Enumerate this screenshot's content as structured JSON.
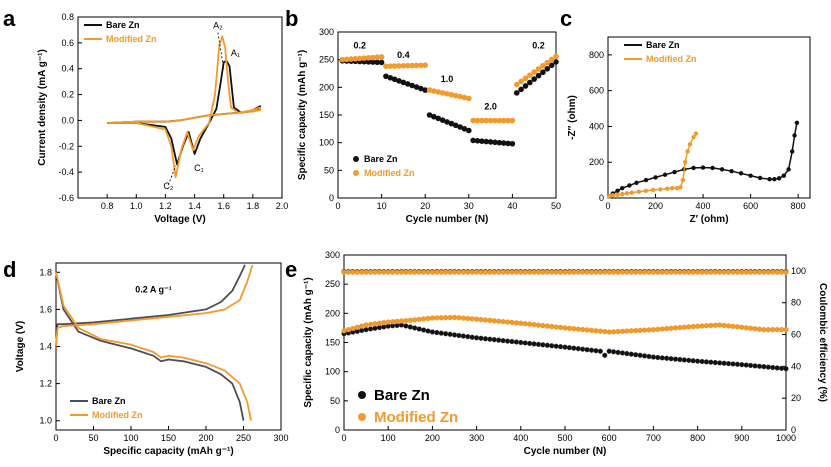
{
  "colors": {
    "black": "#111111",
    "orange": "#f39a2b",
    "gray": "#4d4d57"
  },
  "chart_data": [
    {
      "panel": "a",
      "type": "line",
      "xlabel": "Voltage (V)",
      "ylabel": "Current density (mA g⁻¹)",
      "xlim": [
        0.6,
        2.0
      ],
      "ylim": [
        -0.6,
        0.8
      ],
      "xticks": [
        "0.8",
        "1.0",
        "1.2",
        "1.4",
        "1.6",
        "1.8",
        "2.0"
      ],
      "yticks": [
        "-0.6",
        "-0.4",
        "-0.2",
        "0.0",
        "0.2",
        "0.4",
        "0.6",
        "0.8"
      ],
      "legend_position": "top-left",
      "annotations": [
        "A₂",
        "A₁",
        "C₂",
        "C₁"
      ],
      "series": [
        {
          "name": "Bare Zn",
          "color": "#111111",
          "x": [
            0.8,
            1.0,
            1.2,
            1.24,
            1.28,
            1.32,
            1.36,
            1.4,
            1.44,
            1.5,
            1.55,
            1.58,
            1.6,
            1.62,
            1.64,
            1.67,
            1.72,
            1.8,
            1.85,
            1.85,
            1.8,
            1.7,
            1.6,
            1.5,
            1.4,
            1.3,
            1.2,
            1.0,
            0.8
          ],
          "y": [
            -0.02,
            -0.02,
            -0.05,
            -0.14,
            -0.34,
            -0.2,
            -0.09,
            -0.26,
            -0.14,
            -0.02,
            0.09,
            0.3,
            0.45,
            0.46,
            0.42,
            0.1,
            0.06,
            0.08,
            0.11,
            0.09,
            0.07,
            0.06,
            0.05,
            0.04,
            0.02,
            0.0,
            -0.01,
            -0.01,
            -0.02
          ]
        },
        {
          "name": "Modified Zn",
          "color": "#f39a2b",
          "x": [
            0.8,
            1.0,
            1.2,
            1.24,
            1.27,
            1.31,
            1.35,
            1.39,
            1.43,
            1.5,
            1.54,
            1.57,
            1.59,
            1.61,
            1.63,
            1.65,
            1.7,
            1.8,
            1.85,
            1.85,
            1.8,
            1.7,
            1.6,
            1.5,
            1.4,
            1.3,
            1.2,
            1.0,
            0.8
          ],
          "y": [
            -0.02,
            -0.02,
            -0.07,
            -0.2,
            -0.44,
            -0.22,
            -0.09,
            -0.23,
            -0.12,
            -0.02,
            0.2,
            0.58,
            0.65,
            0.56,
            0.3,
            0.1,
            0.06,
            0.08,
            0.1,
            0.08,
            0.07,
            0.06,
            0.05,
            0.04,
            0.02,
            0.0,
            -0.01,
            -0.01,
            -0.02
          ]
        }
      ]
    },
    {
      "panel": "b",
      "type": "scatter",
      "xlabel": "Cycle number (N)",
      "ylabel": "Specific capacity (mAh g⁻¹)",
      "xlim": [
        0,
        50
      ],
      "ylim": [
        0,
        300
      ],
      "xticks": [
        "0",
        "10",
        "20",
        "30",
        "40",
        "50"
      ],
      "yticks": [
        "0",
        "50",
        "100",
        "150",
        "200",
        "250",
        "300"
      ],
      "legend_position": "bottom-left",
      "rate_labels": [
        "0.2",
        "0.4",
        "1.0",
        "2.0",
        "0.2"
      ],
      "series": [
        {
          "name": "Bare Zn",
          "color": "#111111",
          "segments": [
            {
              "x0": 1,
              "x1": 10,
              "y0": 248,
              "y1": 245
            },
            {
              "x0": 11,
              "x1": 20,
              "y0": 220,
              "y1": 195
            },
            {
              "x0": 21,
              "x1": 30,
              "y0": 150,
              "y1": 122
            },
            {
              "x0": 31,
              "x1": 40,
              "y0": 104,
              "y1": 98
            },
            {
              "x0": 41,
              "x1": 50,
              "y0": 190,
              "y1": 246
            }
          ]
        },
        {
          "name": "Modified Zn",
          "color": "#f39a2b",
          "segments": [
            {
              "x0": 1,
              "x1": 10,
              "y0": 250,
              "y1": 255
            },
            {
              "x0": 11,
              "x1": 20,
              "y0": 238,
              "y1": 240
            },
            {
              "x0": 21,
              "x1": 30,
              "y0": 195,
              "y1": 180
            },
            {
              "x0": 31,
              "x1": 40,
              "y0": 140,
              "y1": 140
            },
            {
              "x0": 41,
              "x1": 50,
              "y0": 205,
              "y1": 256
            }
          ]
        }
      ]
    },
    {
      "panel": "c",
      "type": "line",
      "xlabel": "Z′ (ohm)",
      "ylabel": "-Z″ (ohm)",
      "xlim": [
        0,
        850
      ],
      "ylim": [
        0,
        900
      ],
      "xticks": [
        "0",
        "200",
        "400",
        "600",
        "800"
      ],
      "yticks": [
        "0",
        "200",
        "400",
        "600",
        "800"
      ],
      "legend_position": "top-left",
      "series": [
        {
          "name": "Bare Zn",
          "color": "#111111",
          "x": [
            5,
            20,
            40,
            60,
            90,
            120,
            160,
            200,
            240,
            280,
            320,
            360,
            400,
            440,
            480,
            520,
            560,
            600,
            640,
            680,
            700,
            720,
            740,
            760,
            775,
            785,
            795
          ],
          "y": [
            10,
            25,
            40,
            55,
            70,
            85,
            100,
            115,
            130,
            145,
            160,
            168,
            170,
            168,
            160,
            150,
            138,
            125,
            112,
            105,
            105,
            110,
            125,
            160,
            260,
            350,
            420
          ]
        },
        {
          "name": "Modified Zn",
          "color": "#f39a2b",
          "x": [
            5,
            20,
            40,
            60,
            80,
            100,
            130,
            160,
            190,
            220,
            250,
            270,
            290,
            305,
            315,
            325,
            335,
            345,
            360,
            370
          ],
          "y": [
            10,
            15,
            18,
            22,
            26,
            30,
            35,
            40,
            45,
            48,
            52,
            55,
            55,
            60,
            100,
            200,
            260,
            300,
            340,
            360
          ]
        }
      ]
    },
    {
      "panel": "d",
      "type": "line",
      "annotation": "0.2 A g⁻¹",
      "xlabel": "Specific capacity (mAh g⁻¹)",
      "ylabel": "Voltage (V)",
      "xlim": [
        0,
        300
      ],
      "ylim": [
        0.95,
        1.85
      ],
      "xticks": [
        "0",
        "50",
        "100",
        "150",
        "200",
        "250",
        "300"
      ],
      "yticks": [
        "1.0",
        "1.2",
        "1.4",
        "1.6",
        "1.8"
      ],
      "legend_position": "bottom-left",
      "series": [
        {
          "name": "Bare Zn",
          "color": "#4d4d57",
          "x": [
            0,
            10,
            30,
            60,
            100,
            130,
            140,
            150,
            170,
            200,
            220,
            235,
            245,
            250,
            0,
            2,
            10,
            50,
            100,
            150,
            200,
            220,
            235,
            245,
            252
          ],
          "y": [
            1.8,
            1.6,
            1.48,
            1.43,
            1.39,
            1.35,
            1.32,
            1.33,
            1.32,
            1.29,
            1.25,
            1.2,
            1.1,
            1.0,
            1.4,
            1.52,
            1.52,
            1.53,
            1.55,
            1.57,
            1.6,
            1.64,
            1.7,
            1.78,
            1.84
          ]
        },
        {
          "name": "Modified Zn",
          "color": "#f39a2b",
          "x": [
            0,
            10,
            30,
            60,
            100,
            130,
            140,
            150,
            170,
            200,
            225,
            245,
            255,
            260,
            0,
            2,
            10,
            50,
            100,
            150,
            200,
            225,
            245,
            255,
            262
          ],
          "y": [
            1.8,
            1.62,
            1.5,
            1.44,
            1.41,
            1.37,
            1.34,
            1.35,
            1.34,
            1.31,
            1.27,
            1.2,
            1.1,
            1.0,
            1.4,
            1.5,
            1.51,
            1.52,
            1.54,
            1.56,
            1.58,
            1.6,
            1.65,
            1.75,
            1.84
          ]
        }
      ]
    },
    {
      "panel": "e",
      "type": "scatter",
      "xlabel": "Cycle number (N)",
      "ylabel": "Specific capacity (mAh g⁻¹)",
      "y2label": "Coulombic efficiency (%)",
      "xlim": [
        0,
        1000
      ],
      "ylim": [
        0,
        300
      ],
      "y2lim": [
        0,
        110
      ],
      "xticks": [
        "0",
        "100",
        "200",
        "300",
        "400",
        "500",
        "600",
        "700",
        "800",
        "900",
        "1000"
      ],
      "yticks": [
        "0",
        "50",
        "100",
        "150",
        "200",
        "250",
        "300"
      ],
      "y2ticks": [
        "0",
        "20",
        "40",
        "60",
        "80",
        "100"
      ],
      "legend_position": "bottom-left",
      "series": [
        {
          "name": "Bare Zn",
          "color": "#111111",
          "x": [
            0,
            50,
            100,
            130,
            200,
            300,
            400,
            500,
            580,
            590,
            600,
            700,
            800,
            900,
            1000
          ],
          "y": [
            165,
            172,
            178,
            180,
            168,
            158,
            150,
            142,
            135,
            128,
            135,
            125,
            118,
            112,
            105
          ]
        },
        {
          "name": "Modified Zn",
          "color": "#f39a2b",
          "x": [
            0,
            50,
            100,
            150,
            200,
            250,
            300,
            400,
            500,
            600,
            700,
            800,
            850,
            900,
            950,
            1000
          ],
          "y": [
            170,
            180,
            185,
            188,
            192,
            193,
            190,
            183,
            175,
            168,
            172,
            178,
            180,
            176,
            172,
            172
          ]
        },
        {
          "name": "Bare Zn CE",
          "color": "#111111",
          "axis": "y2",
          "value": 99.6
        },
        {
          "name": "Modified Zn CE",
          "color": "#f39a2b",
          "axis": "y2",
          "value": 99.2
        }
      ]
    }
  ]
}
